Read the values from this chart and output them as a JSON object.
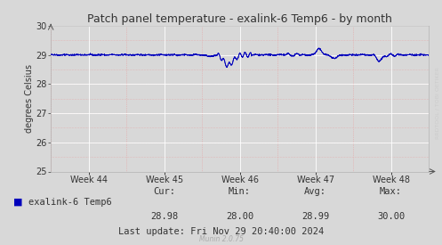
{
  "title": "Patch panel temperature - exalink-6 Temp6 - by month",
  "ylabel": "degrees Celsius",
  "bg_color": "#d8d8d8",
  "plot_bg_color": "#d8d8d8",
  "line_color": "#0000bb",
  "ylim": [
    25,
    30
  ],
  "yticks": [
    25,
    26,
    27,
    28,
    29,
    30
  ],
  "xtick_labels": [
    "Week 44",
    "Week 45",
    "Week 46",
    "Week 47",
    "Week 48"
  ],
  "legend_label": "exalink-6 Temp6",
  "legend_color": "#0000bb",
  "cur_label": "Cur:",
  "cur_val": "28.98",
  "min_label": "Min:",
  "min_val": "28.00",
  "avg_label": "Avg:",
  "avg_val": "28.99",
  "max_label": "Max:",
  "max_val": "30.00",
  "last_update": "Last update: Fri Nov 29 20:40:00 2024",
  "munin_version": "Munin 2.0.75",
  "watermark": "RRDTOOL / TOBI OETIKER",
  "title_fontsize": 9,
  "axis_fontsize": 7,
  "legend_fontsize": 7.5
}
